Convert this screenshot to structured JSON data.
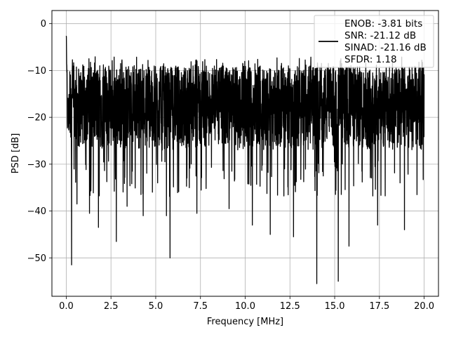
{
  "chart_data": {
    "type": "line",
    "title": "",
    "xlabel": "Frequency [MHz]",
    "ylabel": "PSD [dB]",
    "xlim": [
      -0.8,
      20.8
    ],
    "ylim": [
      -58.2,
      2.8
    ],
    "xticks": [
      0.0,
      2.5,
      5.0,
      7.5,
      10.0,
      12.5,
      15.0,
      17.5,
      20.0
    ],
    "xtick_labels": [
      "0.0",
      "2.5",
      "5.0",
      "7.5",
      "10.0",
      "12.5",
      "15.0",
      "17.5",
      "20.0"
    ],
    "yticks": [
      0,
      -10,
      -20,
      -30,
      -40,
      -50
    ],
    "ytick_labels": [
      "0",
      "−10",
      "−20",
      "−30",
      "−40",
      "−50"
    ],
    "grid": true,
    "legend_position": "top-right",
    "legend_lines": [
      "ENOB: -3.81 bits",
      "SNR: -21.12 dB",
      "SINAD: -21.16 dB",
      "SFDR: 1.18"
    ],
    "series": [
      {
        "color": "#000000",
        "x_range": [
          0.0,
          20.0
        ],
        "noise_band_db": [
          -27,
          -9
        ],
        "median_db": -19,
        "peaks": [
          {
            "x": 0.0,
            "y": 0.0
          }
        ],
        "dips": [
          {
            "x": 0.3,
            "y": -51.5
          },
          {
            "x": 0.6,
            "y": -38.5
          },
          {
            "x": 1.3,
            "y": -40.5
          },
          {
            "x": 1.8,
            "y": -43.5
          },
          {
            "x": 2.8,
            "y": -46.5
          },
          {
            "x": 3.4,
            "y": -39.0
          },
          {
            "x": 4.3,
            "y": -41.0
          },
          {
            "x": 5.6,
            "y": -41.0
          },
          {
            "x": 5.8,
            "y": -50.0
          },
          {
            "x": 7.3,
            "y": -40.5
          },
          {
            "x": 9.1,
            "y": -39.5
          },
          {
            "x": 10.4,
            "y": -43.0
          },
          {
            "x": 11.4,
            "y": -45.0
          },
          {
            "x": 12.7,
            "y": -45.5
          },
          {
            "x": 14.0,
            "y": -55.5
          },
          {
            "x": 15.2,
            "y": -55.0
          },
          {
            "x": 15.8,
            "y": -47.5
          },
          {
            "x": 17.4,
            "y": -43.0
          },
          {
            "x": 18.9,
            "y": -44.0
          },
          {
            "x": 19.6,
            "y": -36.5
          }
        ]
      }
    ]
  }
}
